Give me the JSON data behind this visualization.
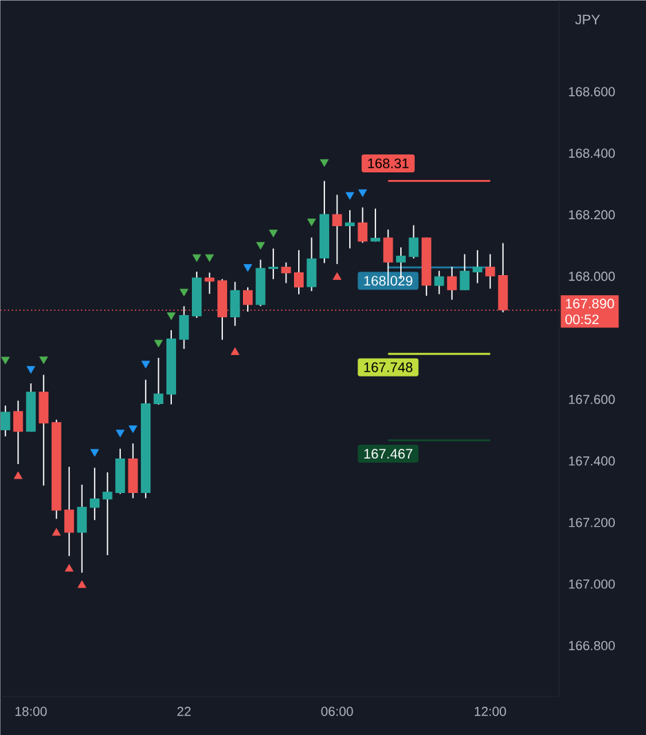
{
  "chart_data": {
    "type": "candlestick",
    "ylabel": "JPY",
    "categories": [
      null,
      null,
      "18:00",
      null,
      null,
      null,
      null,
      null,
      null,
      null,
      null,
      null,
      null,
      null,
      "22",
      null,
      null,
      null,
      null,
      null,
      null,
      null,
      null,
      null,
      null,
      null,
      "06:00",
      null,
      null,
      null,
      null,
      null,
      null,
      null,
      null,
      null,
      null,
      null,
      "12:00",
      null
    ],
    "ohlc": [
      [
        167.5,
        167.58,
        167.48,
        167.56
      ],
      [
        167.562,
        167.596,
        167.39,
        167.495
      ],
      [
        167.495,
        167.652,
        167.495,
        167.625
      ],
      [
        167.625,
        167.68,
        167.32,
        167.522
      ],
      [
        167.526,
        167.534,
        167.212,
        167.239
      ],
      [
        167.242,
        167.381,
        167.091,
        167.167
      ],
      [
        167.167,
        167.323,
        167.037,
        167.251
      ],
      [
        167.248,
        167.378,
        167.208,
        167.278
      ],
      [
        167.275,
        167.363,
        167.094,
        167.3
      ],
      [
        167.296,
        167.44,
        167.293,
        167.408
      ],
      [
        167.408,
        167.457,
        167.279,
        167.296
      ],
      [
        167.296,
        167.664,
        167.279,
        167.587
      ],
      [
        167.585,
        167.735,
        167.583,
        167.619
      ],
      [
        167.616,
        167.825,
        167.584,
        167.798
      ],
      [
        167.794,
        167.903,
        167.764,
        167.874
      ],
      [
        167.87,
        168.015,
        167.865,
        167.996
      ],
      [
        167.996,
        168.012,
        167.943,
        167.983
      ],
      [
        167.987,
        167.991,
        167.794,
        167.867
      ],
      [
        167.867,
        167.982,
        167.839,
        167.955
      ],
      [
        167.955,
        167.964,
        167.885,
        167.907
      ],
      [
        167.907,
        168.054,
        167.903,
        168.027
      ],
      [
        168.024,
        168.09,
        167.991,
        168.031
      ],
      [
        168.031,
        168.045,
        167.978,
        168.01
      ],
      [
        168.013,
        168.085,
        167.942,
        167.964
      ],
      [
        167.965,
        168.126,
        167.952,
        168.058
      ],
      [
        168.058,
        168.31,
        168.043,
        168.202
      ],
      [
        168.202,
        168.265,
        168.04,
        168.163
      ],
      [
        168.163,
        168.215,
        168.091,
        168.175
      ],
      [
        168.175,
        168.224,
        168.109,
        168.113
      ],
      [
        168.113,
        168.22,
        168.113,
        168.125
      ],
      [
        168.126,
        168.152,
        167.97,
        168.045
      ],
      [
        168.045,
        168.094,
        167.991,
        168.067
      ],
      [
        168.063,
        168.166,
        168.058,
        168.126
      ],
      [
        168.126,
        168.126,
        167.937,
        167.97
      ],
      [
        167.969,
        168.018,
        167.942,
        168.0
      ],
      [
        168.0,
        168.031,
        167.924,
        167.955
      ],
      [
        167.955,
        168.072,
        167.955,
        168.018
      ],
      [
        168.013,
        168.085,
        167.978,
        168.031
      ],
      [
        168.031,
        168.072,
        167.96,
        168.0
      ],
      [
        168.004,
        168.108,
        167.883,
        167.89
      ]
    ],
    "series": [
      {
        "type": "scatter",
        "marker": "triangle",
        "color": "#f05350",
        "values": [
          null,
          167.35,
          null,
          null,
          167.166,
          167.049,
          166.996,
          null,
          null,
          null,
          null,
          null,
          null,
          null,
          null,
          null,
          null,
          null,
          167.753,
          null,
          null,
          null,
          null,
          null,
          null,
          null,
          167.997,
          null,
          null,
          null,
          null,
          null,
          null,
          null,
          null,
          null,
          null,
          null,
          null,
          null
        ]
      },
      {
        "type": "scatter",
        "marker": "triangle_down",
        "color": "#2196f3",
        "values": [
          null,
          null,
          167.7,
          null,
          null,
          null,
          null,
          167.43,
          null,
          167.493,
          167.507,
          167.717,
          null,
          null,
          null,
          null,
          null,
          null,
          null,
          168.031,
          null,
          null,
          null,
          null,
          null,
          null,
          null,
          168.265,
          168.274,
          null,
          null,
          null,
          null,
          null,
          null,
          null,
          null,
          null,
          null,
          null
        ]
      },
      {
        "type": "scatter",
        "marker": "triangle_down",
        "color": "#4caf50",
        "values": [
          167.73,
          null,
          null,
          167.731,
          null,
          null,
          null,
          null,
          null,
          null,
          null,
          null,
          167.785,
          167.874,
          167.951,
          168.063,
          168.063,
          null,
          null,
          null,
          168.103,
          168.143,
          null,
          null,
          168.179,
          168.372,
          null,
          null,
          null,
          null,
          null,
          null,
          null,
          null,
          null,
          null,
          null,
          null,
          null,
          null
        ]
      },
      {
        "type": "line",
        "name": "168.31",
        "color": "#f05350",
        "values": [
          null,
          null,
          null,
          null,
          null,
          null,
          null,
          null,
          null,
          null,
          null,
          null,
          null,
          null,
          null,
          null,
          null,
          null,
          null,
          null,
          null,
          null,
          null,
          null,
          null,
          null,
          null,
          null,
          null,
          null,
          168.31,
          168.31,
          168.31,
          168.31,
          168.31,
          168.31,
          168.31,
          168.31,
          168.31,
          null
        ]
      },
      {
        "type": "line",
        "name": "168.029",
        "color": "#1f7a9e",
        "values": [
          null,
          null,
          null,
          null,
          null,
          null,
          null,
          null,
          null,
          null,
          null,
          null,
          null,
          null,
          null,
          null,
          null,
          null,
          null,
          null,
          null,
          null,
          null,
          null,
          null,
          null,
          null,
          null,
          null,
          null,
          168.029,
          168.029,
          168.029,
          168.029,
          168.029,
          168.029,
          168.029,
          168.029,
          168.029,
          null
        ]
      },
      {
        "type": "line",
        "name": "167.748",
        "color": "#c0dd3e",
        "values": [
          null,
          null,
          null,
          null,
          null,
          null,
          null,
          null,
          null,
          null,
          null,
          null,
          null,
          null,
          null,
          null,
          null,
          null,
          null,
          null,
          null,
          null,
          null,
          null,
          null,
          null,
          null,
          null,
          null,
          null,
          167.748,
          167.748,
          167.748,
          167.748,
          167.748,
          167.748,
          167.748,
          167.748,
          167.748,
          null
        ]
      },
      {
        "type": "line",
        "name": "167.467",
        "color": "#0e4a2c",
        "values": [
          null,
          null,
          null,
          null,
          null,
          null,
          null,
          null,
          null,
          null,
          null,
          null,
          null,
          null,
          null,
          null,
          null,
          null,
          null,
          null,
          null,
          null,
          null,
          null,
          null,
          null,
          null,
          null,
          null,
          null,
          167.467,
          167.467,
          167.467,
          167.467,
          167.467,
          167.467,
          167.467,
          167.467,
          167.467,
          null
        ]
      }
    ],
    "ref_lines": [
      {
        "axis": "y",
        "value": 167.89,
        "label": "167.890",
        "color": "#f05350",
        "line_style": "dotted"
      }
    ],
    "annotations": [
      "00:52"
    ],
    "ylim": [
      166.635,
      168.897
    ],
    "yticks": [
      {
        "value": 166.8,
        "label": "166.800"
      },
      {
        "value": 167.0,
        "label": "167.000"
      },
      {
        "value": 167.2,
        "label": "167.200"
      },
      {
        "value": 167.4,
        "label": "167.400"
      },
      {
        "value": 167.6,
        "label": "167.600"
      },
      {
        "value": 168.0,
        "label": "168.000"
      },
      {
        "value": 168.2,
        "label": "168.200"
      },
      {
        "value": 168.4,
        "label": "168.400"
      },
      {
        "value": 168.6,
        "label": "168.600"
      }
    ],
    "grid": false
  }
}
